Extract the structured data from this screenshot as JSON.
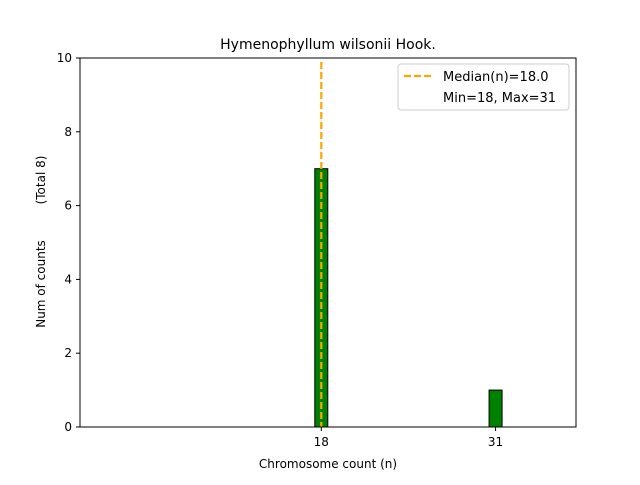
{
  "chart_data": {
    "type": "bar",
    "title": "Hymenophyllum wilsonii Hook.",
    "xlabel": "Chromosome count (n)",
    "ylabel": "Num of counts",
    "ylabel_note": "(Total 8)",
    "bars": [
      {
        "x": 18,
        "value": 7
      },
      {
        "x": 31,
        "value": 1
      }
    ],
    "x_ticks": [
      18,
      31
    ],
    "y_ticks": [
      0,
      2,
      4,
      6,
      8,
      10
    ],
    "xlim": [
      0,
      37
    ],
    "ylim": [
      0,
      10
    ],
    "median": 18.0,
    "legend": {
      "position": "top-right",
      "entries": [
        "Median(n)=18.0",
        "Min=18, Max=31"
      ]
    },
    "colors": {
      "bar_fill": "#008000",
      "bar_edge": "#000000",
      "median_line": "#ffa500"
    },
    "grid": false
  }
}
